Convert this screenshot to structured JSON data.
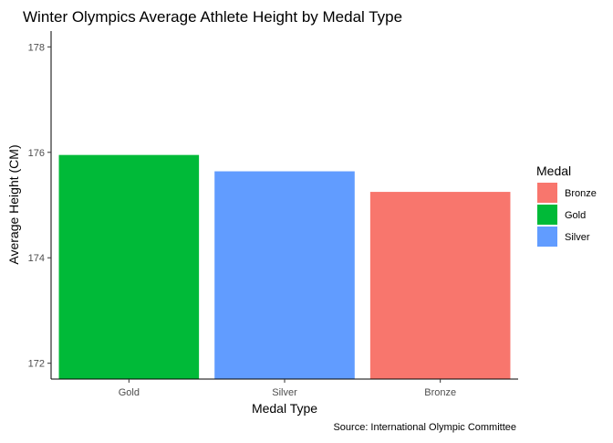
{
  "chart_data": {
    "type": "bar",
    "title": "Winter Olympics Average Athlete Height by Medal Type",
    "xlabel": "Medal Type",
    "ylabel": "Average Height (CM)",
    "caption": "Source: International Olympic Committee",
    "categories": [
      "Gold",
      "Silver",
      "Bronze"
    ],
    "values": [
      175.95,
      175.64,
      175.25
    ],
    "bar_colors": [
      "#00BA38",
      "#619CFF",
      "#F8766D"
    ],
    "ylim": [
      171.7,
      178.3
    ],
    "yticks": [
      172,
      174,
      176,
      178
    ],
    "grid": false,
    "legend": {
      "title": "Medal",
      "position": "right",
      "entries": [
        {
          "label": "Bronze",
          "color": "#F8766D"
        },
        {
          "label": "Gold",
          "color": "#00BA38"
        },
        {
          "label": "Silver",
          "color": "#619CFF"
        }
      ]
    }
  }
}
